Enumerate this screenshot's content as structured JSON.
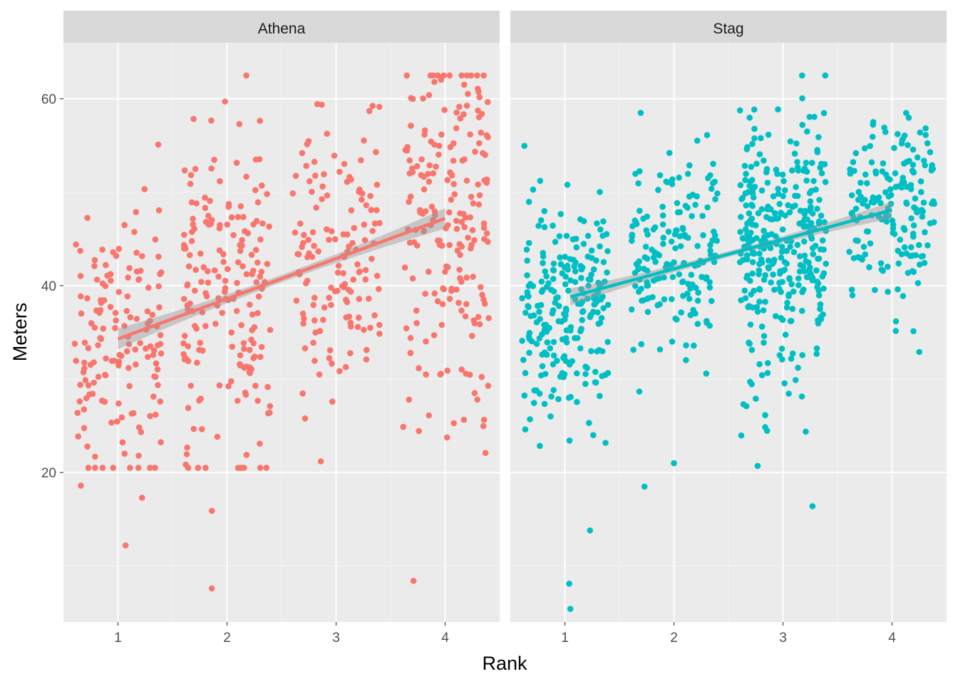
{
  "chart_data": {
    "type": "scatter",
    "xlabel": "Rank",
    "ylabel": "Meters",
    "xlim": [
      0.5,
      4.5
    ],
    "ylim": [
      4,
      66
    ],
    "x_ticks": [
      1,
      2,
      3,
      4
    ],
    "y_ticks": [
      20,
      40,
      60
    ],
    "grid": true,
    "legend": "none",
    "panels": [
      {
        "strip_label": "Athena",
        "color": "#F8766D",
        "trend_line": {
          "x": [
            1,
            4
          ],
          "y": [
            34.3,
            47.2
          ],
          "ci_halfwidth_ends": 1.1,
          "ci_halfwidth_mid": 0.4
        },
        "groups": [
          {
            "rank": 1,
            "n": 150,
            "mean": 33.5,
            "sd": 7.8,
            "jitter": 0.4
          },
          {
            "rank": 2,
            "n": 190,
            "mean": 38.5,
            "sd": 9.5,
            "jitter": 0.4
          },
          {
            "rank": 3,
            "n": 140,
            "mean": 43.0,
            "sd": 7.5,
            "jitter": 0.4
          },
          {
            "rank": 4,
            "n": 200,
            "mean": 47.0,
            "sd": 10.0,
            "jitter": 0.4
          }
        ],
        "outliers": [
          [
            1.07,
            12.2
          ],
          [
            1.22,
            17.3
          ],
          [
            1.86,
            15.9
          ],
          [
            1.86,
            7.6
          ],
          [
            2.86,
            21.2
          ],
          [
            3.71,
            8.4
          ],
          [
            0.66,
            18.6
          ],
          [
            4.37,
            22.1
          ]
        ]
      },
      {
        "strip_label": "Stag",
        "color": "#00BFC4",
        "trend_line": {
          "x": [
            1.05,
            4
          ],
          "y": [
            38.8,
            48.1
          ],
          "ci_halfwidth_ends": 0.9,
          "ci_halfwidth_mid": 0.3
        },
        "groups": [
          {
            "rank": 1,
            "n": 230,
            "mean": 38.0,
            "sd": 6.0,
            "jitter": 0.4
          },
          {
            "rank": 2,
            "n": 170,
            "mean": 43.5,
            "sd": 6.0,
            "jitter": 0.4
          },
          {
            "rank": 3,
            "n": 330,
            "mean": 44.5,
            "sd": 7.0,
            "jitter": 0.4
          },
          {
            "rank": 4,
            "n": 170,
            "mean": 48.0,
            "sd": 5.5,
            "jitter": 0.4
          }
        ],
        "outliers": [
          [
            1.04,
            8.1
          ],
          [
            1.05,
            5.4
          ],
          [
            1.23,
            13.8
          ],
          [
            1.73,
            18.5
          ],
          [
            2.0,
            21.0
          ],
          [
            3.27,
            16.4
          ],
          [
            1.26,
            24.0
          ],
          [
            2.75,
            27.9
          ]
        ]
      }
    ]
  }
}
